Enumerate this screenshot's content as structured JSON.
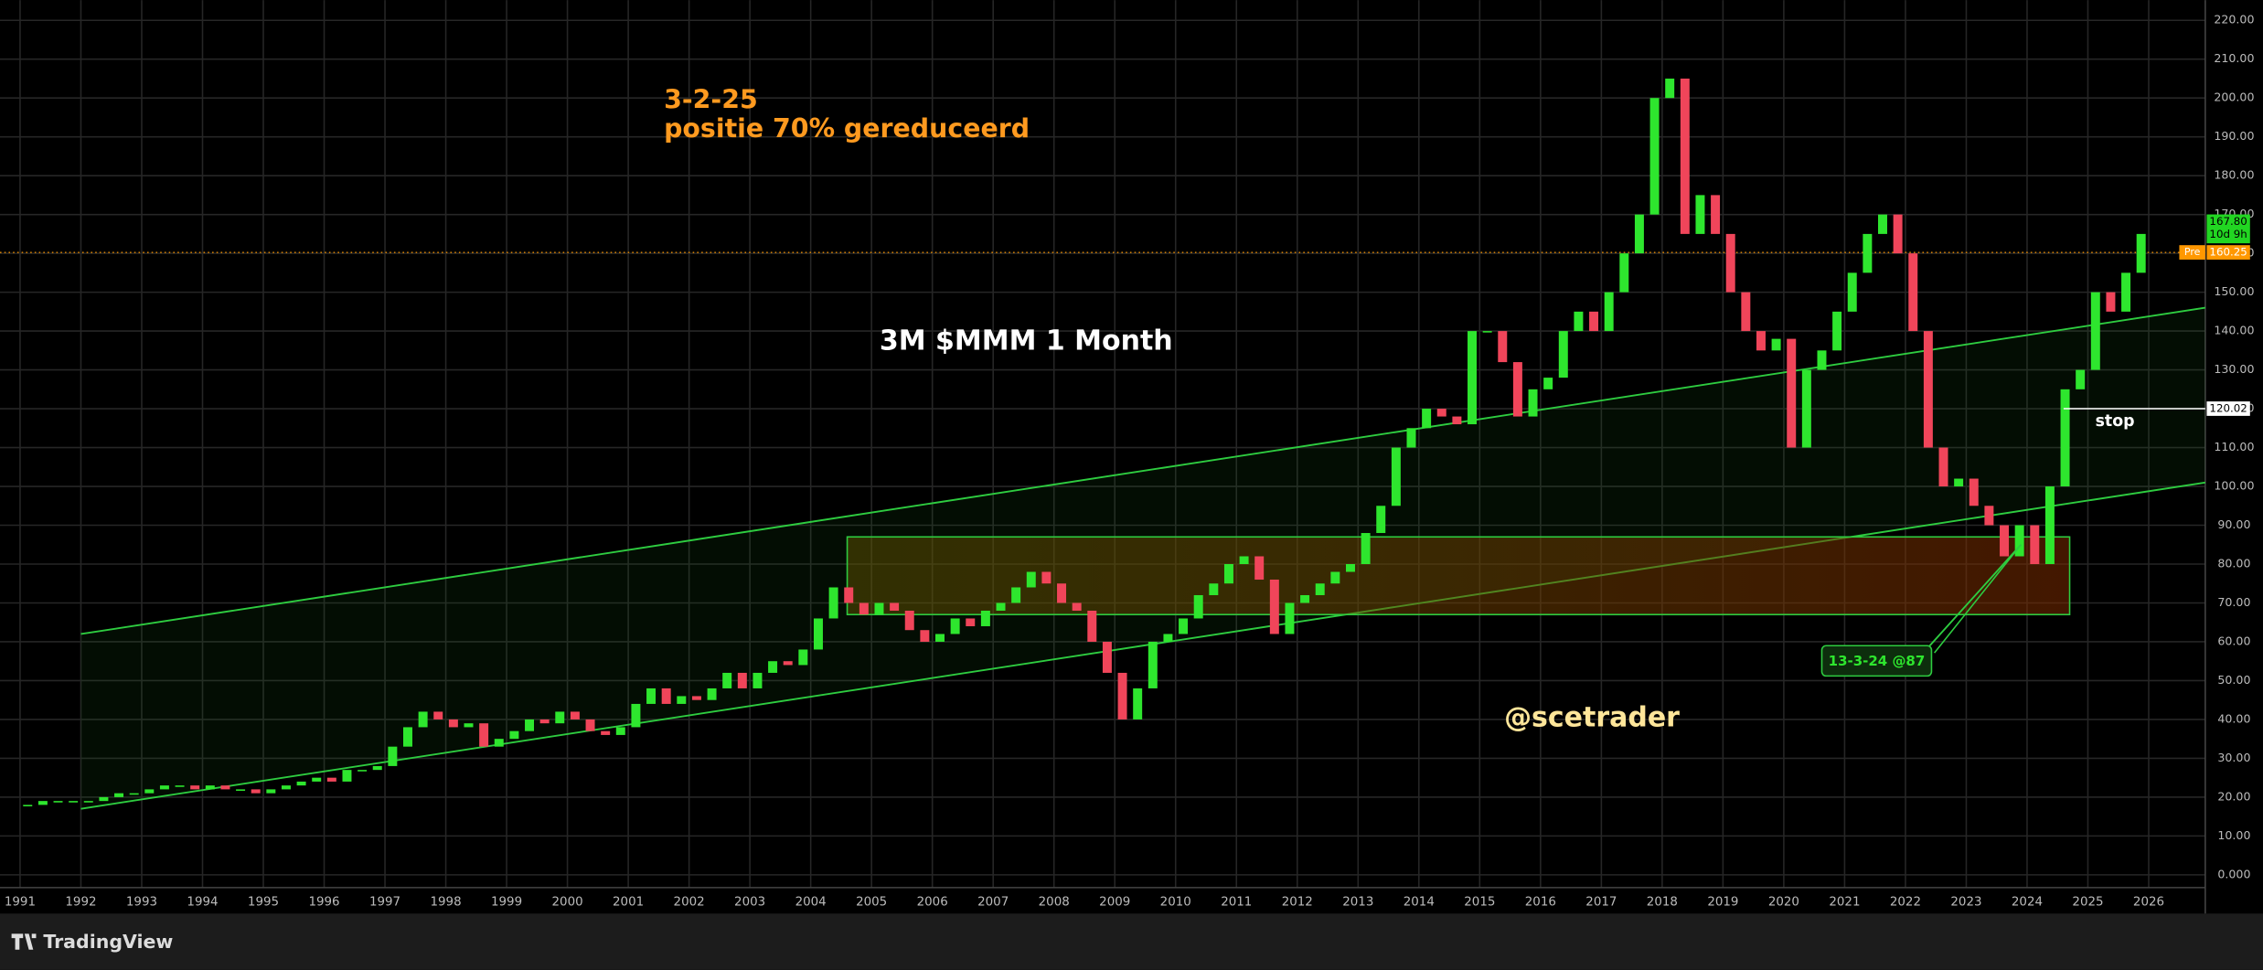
{
  "chart_data": {
    "type": "candlestick",
    "title": "3M $MMM 1 Month",
    "annotation": [
      "3-2-25",
      "positie 70% gereduceerd"
    ],
    "watermark": "@scetrader",
    "footer": "TradingView",
    "xlim": [
      1990.67,
      2026.93
    ],
    "xticks": [
      1991,
      1992,
      1993,
      1994,
      1995,
      1996,
      1997,
      1998,
      1999,
      2000,
      2001,
      2002,
      2003,
      2004,
      2005,
      2006,
      2007,
      2008,
      2009,
      2010,
      2011,
      2012,
      2013,
      2014,
      2015,
      2016,
      2017,
      2018,
      2019,
      2020,
      2021,
      2022,
      2023,
      2024,
      2025,
      2026
    ],
    "ylim": [
      -3.3,
      225.2
    ],
    "yticks": [
      {
        "value": 0,
        "label": "0.000"
      },
      {
        "value": 10,
        "label": "10.00"
      },
      {
        "value": 20,
        "label": "20.00"
      },
      {
        "value": 30,
        "label": "30.00"
      },
      {
        "value": 40,
        "label": "40.00"
      },
      {
        "value": 50,
        "label": "50.00"
      },
      {
        "value": 60,
        "label": "60.00"
      },
      {
        "value": 70,
        "label": "70.00"
      },
      {
        "value": 80,
        "label": "80.00"
      },
      {
        "value": 90,
        "label": "90.00"
      },
      {
        "value": 100,
        "label": "100.00"
      },
      {
        "value": 110,
        "label": "110.00"
      },
      {
        "value": 120,
        "label": "120.00"
      },
      {
        "value": 130,
        "label": "130.00"
      },
      {
        "value": 140,
        "label": "140.00"
      },
      {
        "value": 150,
        "label": "150.00"
      },
      {
        "value": 160,
        "label": "160.00"
      },
      {
        "value": 170,
        "label": "170.00"
      },
      {
        "value": 180,
        "label": "180.00"
      },
      {
        "value": 190,
        "label": "190.00"
      },
      {
        "value": 200,
        "label": "200.00"
      },
      {
        "value": 210,
        "label": "210.00"
      },
      {
        "value": 220,
        "label": "220.00"
      }
    ],
    "grid": true,
    "up_color": "#2ee62e",
    "down_color": "#f0455a",
    "x": [
      1991,
      1991.25,
      1991.5,
      1991.75,
      1992,
      1992.25,
      1992.5,
      1992.75,
      1993,
      1993.25,
      1993.5,
      1993.75,
      1994,
      1994.25,
      1994.5,
      1994.75,
      1995,
      1995.25,
      1995.5,
      1995.75,
      1996,
      1996.25,
      1996.5,
      1996.75,
      1997,
      1997.25,
      1997.5,
      1997.75,
      1998,
      1998.25,
      1998.5,
      1998.75,
      1999,
      1999.25,
      1999.5,
      1999.75,
      2000,
      2000.25,
      2000.5,
      2000.75,
      2001,
      2001.25,
      2001.5,
      2001.75,
      2002,
      2002.25,
      2002.5,
      2002.75,
      2003,
      2003.25,
      2003.5,
      2003.75,
      2004,
      2004.25,
      2004.5,
      2004.75,
      2005,
      2005.25,
      2005.5,
      2005.75,
      2006,
      2006.25,
      2006.5,
      2006.75,
      2007,
      2007.25,
      2007.5,
      2007.75,
      2008,
      2008.25,
      2008.5,
      2008.75,
      2009,
      2009.25,
      2009.5,
      2009.75,
      2010,
      2010.25,
      2010.5,
      2010.75,
      2011,
      2011.25,
      2011.5,
      2011.75,
      2012,
      2012.25,
      2012.5,
      2012.75,
      2013,
      2013.25,
      2013.5,
      2013.75,
      2014,
      2014.25,
      2014.5,
      2014.75,
      2015,
      2015.25,
      2015.5,
      2015.75,
      2016,
      2016.25,
      2016.5,
      2016.75,
      2017,
      2017.25,
      2017.5,
      2017.75,
      2018,
      2018.25,
      2018.5,
      2018.75,
      2019,
      2019.25,
      2019.5,
      2019.75,
      2020,
      2020.25,
      2020.5,
      2020.75,
      2021,
      2021.25,
      2021.5,
      2021.75,
      2022,
      2022.25,
      2022.5,
      2022.75,
      2023,
      2023.25,
      2023.5,
      2023.75,
      2024,
      2024.25,
      2024.5,
      2024.75,
      2025,
      2025.25,
      2025.5,
      2025.75
    ],
    "series": [
      {
        "name": "MMM",
        "values": [
          18,
          19,
          19,
          19,
          19,
          20,
          21,
          21,
          22,
          23,
          23,
          22,
          23,
          22,
          22,
          21,
          22,
          23,
          24,
          25,
          24,
          27,
          27,
          28,
          33,
          38,
          42,
          40,
          38,
          39,
          33,
          35,
          37,
          40,
          39,
          42,
          40,
          37,
          36,
          38,
          44,
          48,
          44,
          46,
          45,
          48,
          52,
          48,
          52,
          55,
          54,
          58,
          66,
          74,
          70,
          67,
          70,
          68,
          63,
          60,
          62,
          66,
          64,
          68,
          70,
          74,
          78,
          75,
          70,
          68,
          60,
          52,
          40,
          48,
          60,
          62,
          66,
          72,
          75,
          80,
          82,
          76,
          62,
          70,
          72,
          75,
          78,
          80,
          88,
          95,
          110,
          115,
          120,
          118,
          116,
          140,
          140,
          132,
          118,
          125,
          128,
          140,
          145,
          140,
          150,
          160,
          170,
          200,
          205,
          165,
          175,
          165,
          150,
          140,
          135,
          138,
          110,
          130,
          135,
          145,
          155,
          165,
          170,
          160,
          140,
          110,
          100,
          102,
          95,
          90,
          82,
          90,
          80,
          100,
          125,
          130,
          150,
          145,
          155,
          165
        ]
      }
    ],
    "channels": [
      {
        "x": [
          1992,
          2026.93
        ],
        "y": [
          62,
          146
        ]
      },
      {
        "x": [
          1992,
          2026.93
        ],
        "y": [
          17,
          101
        ]
      }
    ],
    "zone": {
      "x": [
        2004.6,
        2024.7
      ],
      "y": [
        67,
        87
      ]
    },
    "callout": {
      "text": "13-3-24 @87",
      "x": 2023.9,
      "y": 85
    },
    "last_price": {
      "value": 167.8,
      "label": "167.80"
    },
    "countdown": "10d 9h",
    "premarket": {
      "tag": "Pre",
      "value": 160.25,
      "label": "160.25",
      "color": "#ff9800"
    },
    "stop_level": {
      "value": 120.02,
      "label": "120.02",
      "text": "stop",
      "x_start": 2024.6
    }
  }
}
